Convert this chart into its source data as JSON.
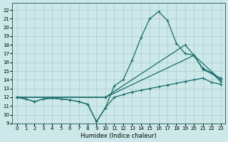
{
  "xlabel": "Humidex (Indice chaleur)",
  "xlim": [
    -0.5,
    23.5
  ],
  "ylim": [
    9,
    22.8
  ],
  "xticks": [
    0,
    1,
    2,
    3,
    4,
    5,
    6,
    7,
    8,
    9,
    10,
    11,
    12,
    13,
    14,
    15,
    16,
    17,
    18,
    19,
    20,
    21,
    22,
    23
  ],
  "yticks": [
    9,
    10,
    11,
    12,
    13,
    14,
    15,
    16,
    17,
    18,
    19,
    20,
    21,
    22
  ],
  "bg_color": "#cce8e8",
  "grid_color": "#aacccc",
  "line_color": "#1a6b6b",
  "line1_x": [
    0,
    1,
    2,
    3,
    4,
    5,
    6,
    7,
    8,
    9,
    10,
    11,
    12,
    13,
    14,
    15,
    16,
    17,
    18,
    19,
    20,
    21,
    22,
    23
  ],
  "line1_y": [
    12.0,
    11.8,
    11.5,
    11.8,
    11.9,
    11.8,
    11.7,
    11.5,
    11.2,
    9.2,
    10.8,
    12.0,
    12.3,
    12.6,
    12.8,
    13.0,
    13.2,
    13.4,
    13.6,
    13.8,
    14.0,
    14.2,
    13.7,
    13.5
  ],
  "line2_x": [
    0,
    1,
    2,
    3,
    4,
    5,
    6,
    7,
    8,
    9,
    10,
    11,
    12,
    13,
    14,
    15,
    16,
    17,
    18,
    19,
    20,
    21,
    22,
    23
  ],
  "line2_y": [
    12.0,
    11.8,
    11.5,
    11.8,
    11.9,
    11.8,
    11.7,
    11.5,
    11.2,
    9.2,
    10.8,
    13.3,
    14.0,
    16.2,
    18.8,
    21.0,
    21.8,
    20.8,
    18.2,
    17.0,
    16.8,
    15.3,
    14.8,
    13.8
  ],
  "line3_x": [
    0,
    10,
    19,
    20,
    23
  ],
  "line3_y": [
    12.0,
    12.0,
    18.0,
    16.8,
    14.0
  ],
  "line4_x": [
    0,
    10,
    20,
    21,
    23
  ],
  "line4_y": [
    12.0,
    12.0,
    16.8,
    15.2,
    14.2
  ]
}
